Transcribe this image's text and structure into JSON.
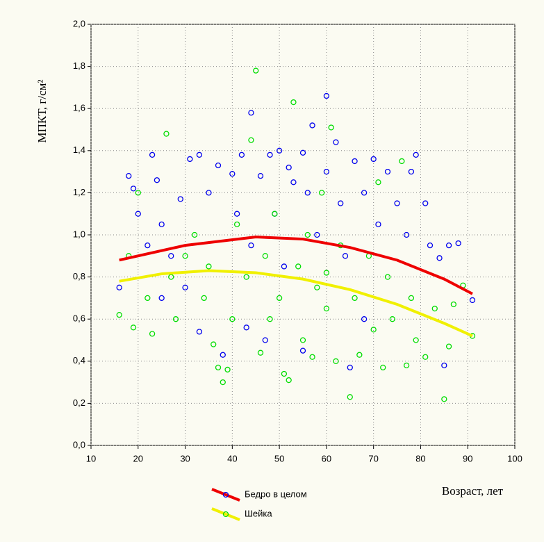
{
  "chart_data": {
    "type": "scatter",
    "y_label": "МПКТ, г/см²",
    "x_label": "Возраст, лет",
    "xlim": [
      10,
      100
    ],
    "xticks": [
      10,
      20,
      30,
      40,
      50,
      60,
      70,
      80,
      90,
      100
    ],
    "ylim": [
      0,
      2
    ],
    "yticks": [
      {
        "value": 0,
        "label": "0,0"
      },
      {
        "value": 0.2,
        "label": "0,2"
      },
      {
        "value": 0.4,
        "label": "0,4"
      },
      {
        "value": 0.6,
        "label": "0,6"
      },
      {
        "value": 0.8,
        "label": "0,8"
      },
      {
        "value": 1.0,
        "label": "1,0"
      },
      {
        "value": 1.2,
        "label": "1,2"
      },
      {
        "value": 1.4,
        "label": "1,4"
      },
      {
        "value": 1.6,
        "label": "1,6"
      },
      {
        "value": 1.8,
        "label": "1,8"
      },
      {
        "value": 2.0,
        "label": "2,0"
      }
    ],
    "grid": true,
    "legend": "bottom-left",
    "series": [
      {
        "name": "Бедро в целом",
        "color": "#0000ee",
        "line_color": "#ee0000",
        "x": [
          16,
          18,
          19,
          20,
          22,
          23,
          24,
          25,
          27,
          29,
          31,
          33,
          33,
          35,
          37,
          38,
          40,
          41,
          42,
          44,
          44,
          46,
          48,
          49,
          50,
          51,
          52,
          53,
          55,
          56,
          57,
          58,
          60,
          60,
          62,
          63,
          64,
          65,
          66,
          68,
          70,
          71,
          73,
          75,
          77,
          78,
          79,
          81,
          82,
          84,
          85,
          86,
          88,
          91,
          47,
          55,
          43,
          68,
          30,
          25
        ],
        "y": [
          0.75,
          1.28,
          1.22,
          1.1,
          0.95,
          1.38,
          1.26,
          1.05,
          0.9,
          1.17,
          1.36,
          1.38,
          0.54,
          1.2,
          1.33,
          0.43,
          1.29,
          1.1,
          1.38,
          1.58,
          0.95,
          1.28,
          1.38,
          1.1,
          1.4,
          0.85,
          1.32,
          1.25,
          1.39,
          1.2,
          1.52,
          1.0,
          1.66,
          1.3,
          1.44,
          1.15,
          0.9,
          0.37,
          1.35,
          1.2,
          1.36,
          1.05,
          1.3,
          1.15,
          1.0,
          1.3,
          1.38,
          1.15,
          0.95,
          0.89,
          0.38,
          0.95,
          0.96,
          0.69,
          0.5,
          0.45,
          0.56,
          0.6,
          0.75,
          0.7
        ],
        "fit": {
          "x": [
            16,
            30,
            45,
            55,
            65,
            75,
            85,
            91
          ],
          "y": [
            0.88,
            0.95,
            0.99,
            0.98,
            0.94,
            0.88,
            0.79,
            0.72
          ]
        }
      },
      {
        "name": "Шейка",
        "color": "#00dd00",
        "line_color": "#f0f000",
        "x": [
          16,
          18,
          19,
          20,
          22,
          23,
          26,
          27,
          28,
          30,
          32,
          34,
          36,
          37,
          38,
          39,
          40,
          41,
          43,
          44,
          45,
          46,
          47,
          48,
          49,
          50,
          51,
          52,
          53,
          54,
          55,
          56,
          57,
          58,
          59,
          60,
          61,
          62,
          63,
          65,
          66,
          67,
          69,
          70,
          71,
          72,
          73,
          74,
          76,
          77,
          78,
          79,
          81,
          83,
          85,
          86,
          87,
          89,
          91,
          35,
          60
        ],
        "y": [
          0.62,
          0.9,
          0.56,
          1.2,
          0.7,
          0.53,
          1.48,
          0.8,
          0.6,
          0.9,
          1.0,
          0.7,
          0.48,
          0.37,
          0.3,
          0.36,
          0.6,
          1.05,
          0.8,
          1.45,
          1.78,
          0.44,
          0.9,
          0.6,
          1.1,
          0.7,
          0.34,
          0.31,
          1.63,
          0.85,
          0.5,
          1.0,
          0.42,
          0.75,
          1.2,
          0.65,
          1.51,
          0.4,
          0.95,
          0.23,
          0.7,
          0.43,
          0.9,
          0.55,
          1.25,
          0.37,
          0.8,
          0.6,
          1.35,
          0.38,
          0.7,
          0.5,
          0.42,
          0.65,
          0.22,
          0.47,
          0.67,
          0.76,
          0.52,
          0.85,
          0.82
        ],
        "fit": {
          "x": [
            16,
            25,
            35,
            45,
            55,
            65,
            75,
            85,
            91
          ],
          "y": [
            0.78,
            0.815,
            0.83,
            0.82,
            0.79,
            0.74,
            0.67,
            0.58,
            0.52
          ]
        }
      }
    ]
  }
}
